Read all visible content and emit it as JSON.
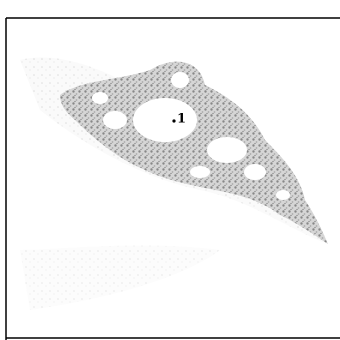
{
  "marker": {
    "label": "1"
  }
}
